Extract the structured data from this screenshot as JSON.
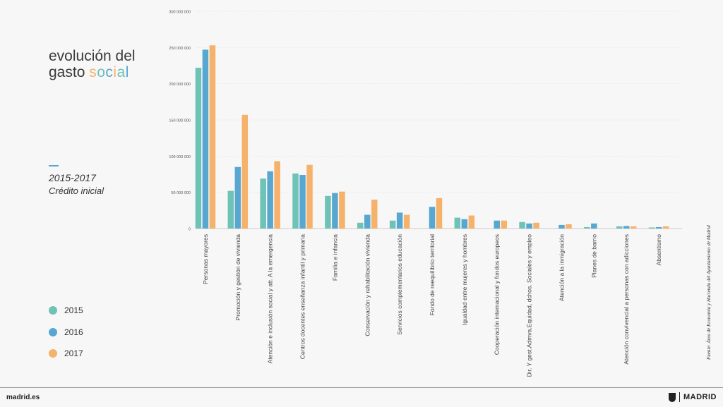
{
  "title": {
    "line1": "evolución del",
    "line2_plain": "gasto ",
    "line2_letters": [
      "s",
      "o",
      "c",
      "i",
      "a",
      "l"
    ]
  },
  "title_letter_colors": [
    "#f5b26a",
    "#6fc2b6",
    "#58a7d1",
    "#f5b26a",
    "#6fc2b6",
    "#58a7d1"
  ],
  "period": "2015-2017",
  "subtitle": "Crédito inicial",
  "source": "Fuente: Área de Economía y Hacienda del Ayuntamiento de Madrid",
  "footer": {
    "site": "madrid.es",
    "brand": "MADRID"
  },
  "chart_data": {
    "type": "bar",
    "ylim": [
      0,
      300000000
    ],
    "yticks": [
      0,
      50000000,
      100000000,
      150000000,
      200000000,
      250000000,
      300000000
    ],
    "ytick_labels": [
      "0",
      "50 000 000",
      "100 000 000",
      "150 000 000",
      "200 000 000",
      "250 000 000",
      "300 000 000"
    ],
    "grid": true,
    "legend": "left",
    "categories": [
      "Personas mayores",
      "Promoción y gestión de vivienda",
      "Atención e inclusión social y att. A la emergencia",
      "Centros docentes enseñanza infantil y primaria",
      "Familia e infancia",
      "Conservación y rehabilitación vivienda",
      "Servicios complementarios educación",
      "Fondo de reequilibrio territorial",
      "Igualdad entre mujeres y hombres",
      "Cooperación internacional y fondos europeos",
      "Dir. Y gest.Admva.Equidad, dchos. Sociales y empleo",
      "Atención a la inmigración",
      "Planes de barrio",
      "Atención convivencial a personas con adicciones",
      "Absentismo"
    ],
    "series": [
      {
        "name": "2015",
        "color": "#6fc2b6",
        "values": [
          222000000,
          52000000,
          69000000,
          76000000,
          45000000,
          8000000,
          11000000,
          0,
          15000000,
          0,
          9000000,
          0,
          2000000,
          3000000,
          1500000
        ]
      },
      {
        "name": "2016",
        "color": "#58a7d1",
        "values": [
          247000000,
          85000000,
          79000000,
          74000000,
          49000000,
          19000000,
          22000000,
          30000000,
          13000000,
          11000000,
          7000000,
          5000000,
          7000000,
          3500000,
          2000000
        ]
      },
      {
        "name": "2017",
        "color": "#f5b26a",
        "values": [
          253000000,
          157000000,
          93000000,
          88000000,
          51000000,
          40000000,
          19000000,
          42000000,
          18000000,
          11000000,
          8000000,
          6000000,
          0,
          3000000,
          3000000
        ]
      }
    ]
  }
}
